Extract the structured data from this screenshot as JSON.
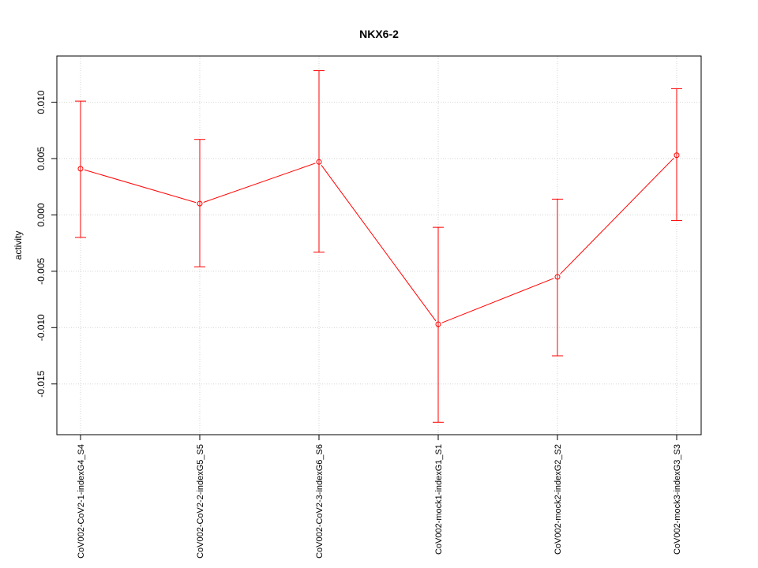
{
  "chart_data": {
    "type": "line",
    "title": "NKX6-2",
    "xlabel": "",
    "ylabel": "activity",
    "categories": [
      "CoV002-CoV2-1-indexG4_S4",
      "CoV002-CoV2-2-indexG5_S5",
      "CoV002-CoV2-3-indexG6_S6",
      "CoV002-mock1-indexG1_S1",
      "CoV002-mock2-indexG2_S2",
      "CoV002-mock3-indexG3_S3"
    ],
    "series": [
      {
        "values": [
          0.0041,
          0.001,
          0.0047,
          -0.0097,
          -0.0055,
          0.0053
        ],
        "lower": [
          -0.002,
          -0.0046,
          -0.0033,
          -0.0184,
          -0.0125,
          -0.0005
        ],
        "upper": [
          0.0101,
          0.0067,
          0.0128,
          -0.0011,
          0.0014,
          0.0112
        ],
        "color": "#ff0000"
      }
    ],
    "ylim": [
      -0.0195,
      0.0141
    ],
    "yticks": [
      -0.015,
      -0.01,
      -0.005,
      0.0,
      0.005,
      0.01
    ],
    "ytick_labels": [
      "-0.015",
      "-0.010",
      "-0.005",
      "0.000",
      "0.005",
      "0.010"
    ],
    "grid": true,
    "grid_color": "#d3d3d3"
  }
}
